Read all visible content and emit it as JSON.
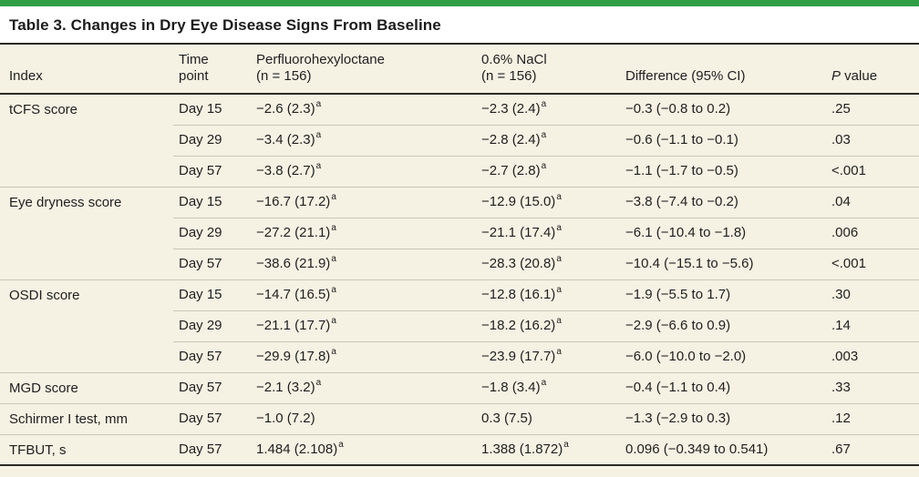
{
  "title": "Table 3. Changes in Dry Eye Disease Signs From Baseline",
  "colors": {
    "accent_green": "#2f9e44",
    "table_background": "#f5f1e3",
    "dark_rule": "#2b2a26",
    "light_rule": "#cbc7b6",
    "text": "#1f1f1f"
  },
  "t": {
    "headers": {
      "index": "Index",
      "time": "Time\npoint",
      "pfho": "Perfluorohexyloctane\n(n = 156)",
      "nacl": "0.6% NaCl\n(n = 156)",
      "diff": "Difference (95% CI)",
      "p_italic": "P",
      "p_rest": " value"
    },
    "rows": [
      {
        "index": "tCFS score",
        "time": "Day 15",
        "pfho": {
          "v": "−2.6 (2.3)",
          "sup": "a"
        },
        "nacl": {
          "v": "−2.3 (2.4)",
          "sup": "a"
        },
        "diff": "−0.3 (−0.8 to 0.2)",
        "p": ".25"
      },
      {
        "time": "Day 29",
        "pfho": {
          "v": "−3.4 (2.3)",
          "sup": "a"
        },
        "nacl": {
          "v": "−2.8 (2.4)",
          "sup": "a"
        },
        "diff": "−0.6 (−1.1 to −0.1)",
        "p": ".03"
      },
      {
        "time": "Day 57",
        "pfho": {
          "v": "−3.8 (2.7)",
          "sup": "a"
        },
        "nacl": {
          "v": "−2.7 (2.8)",
          "sup": "a"
        },
        "diff": "−1.1 (−1.7 to −0.5)",
        "p": "<.001"
      },
      {
        "index": "Eye dryness score",
        "time": "Day 15",
        "pfho": {
          "v": "−16.7 (17.2)",
          "sup": "a"
        },
        "nacl": {
          "v": "−12.9 (15.0)",
          "sup": "a"
        },
        "diff": "−3.8 (−7.4 to −0.2)",
        "p": ".04"
      },
      {
        "time": "Day 29",
        "pfho": {
          "v": "−27.2 (21.1)",
          "sup": "a"
        },
        "nacl": {
          "v": "−21.1 (17.4)",
          "sup": "a"
        },
        "diff": "−6.1 (−10.4 to −1.8)",
        "p": ".006"
      },
      {
        "time": "Day 57",
        "pfho": {
          "v": "−38.6 (21.9)",
          "sup": "a"
        },
        "nacl": {
          "v": "−28.3 (20.8)",
          "sup": "a"
        },
        "diff": "−10.4 (−15.1 to −5.6)",
        "p": "<.001"
      },
      {
        "index": "OSDI score",
        "time": "Day 15",
        "pfho": {
          "v": "−14.7 (16.5)",
          "sup": "a"
        },
        "nacl": {
          "v": "−12.8 (16.1)",
          "sup": "a"
        },
        "diff": "−1.9 (−5.5 to 1.7)",
        "p": ".30"
      },
      {
        "time": "Day 29",
        "pfho": {
          "v": "−21.1 (17.7)",
          "sup": "a"
        },
        "nacl": {
          "v": "−18.2 (16.2)",
          "sup": "a"
        },
        "diff": "−2.9 (−6.6 to 0.9)",
        "p": ".14"
      },
      {
        "time": "Day 57",
        "pfho": {
          "v": "−29.9 (17.8)",
          "sup": "a"
        },
        "nacl": {
          "v": "−23.9 (17.7)",
          "sup": "a"
        },
        "diff": "−6.0 (−10.0 to −2.0)",
        "p": ".003"
      },
      {
        "index": "MGD score",
        "time": "Day 57",
        "pfho": {
          "v": "−2.1 (3.2)",
          "sup": "a"
        },
        "nacl": {
          "v": "−1.8 (3.4)",
          "sup": "a"
        },
        "diff": "−0.4 (−1.1 to 0.4)",
        "p": ".33"
      },
      {
        "index": "Schirmer I test, mm",
        "time": "Day 57",
        "pfho": {
          "v": "−1.0 (7.2)",
          "sup": ""
        },
        "nacl": {
          "v": "0.3 (7.5)",
          "sup": ""
        },
        "diff": "−1.3 (−2.9 to 0.3)",
        "p": ".12"
      },
      {
        "index": "TFBUT, s",
        "time": "Day 57",
        "pfho": {
          "v": "1.484 (2.108)",
          "sup": "a"
        },
        "nacl": {
          "v": "1.388 (1.872)",
          "sup": "a"
        },
        "diff": "0.096 (−0.349 to 0.541)",
        "p": ".67"
      }
    ]
  }
}
